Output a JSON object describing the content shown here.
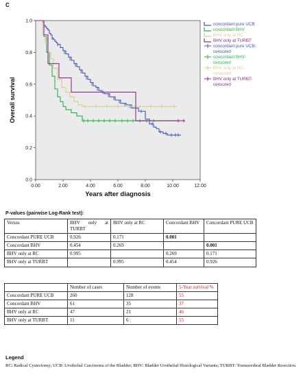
{
  "figure_label": "C",
  "chart_data": {
    "type": "line",
    "subtype": "kaplan-meier",
    "xlabel": "Years after diagnosis",
    "ylabel": "Overall survival",
    "xlim": [
      0,
      12
    ],
    "ylim": [
      0,
      1.0
    ],
    "x_ticks": [
      "0.00",
      "2.00",
      "4.00",
      "6.00",
      "8.00",
      "10.00",
      "12.00"
    ],
    "y_ticks": [
      "0.0",
      "0.2",
      "0.4",
      "0.6",
      "0.8",
      "1.0"
    ],
    "grid": false,
    "legend_position": "right",
    "background": "#ebebeb",
    "series": [
      {
        "name": "concordant pure UCB",
        "color": "#3c58b6",
        "x": [
          0,
          0.5,
          0.6,
          0.7,
          0.8,
          0.9,
          1.0,
          1.1,
          1.2,
          1.3,
          1.4,
          1.5,
          1.6,
          1.8,
          2.0,
          2.2,
          2.4,
          2.6,
          2.8,
          3.0,
          3.2,
          3.4,
          3.6,
          3.8,
          4.0,
          4.2,
          4.4,
          4.6,
          4.8,
          5.0,
          5.4,
          5.8,
          6.2,
          6.6,
          7.0,
          7.5,
          8.0,
          8.3,
          8.6,
          8.8,
          9.0,
          9.3,
          9.6,
          10.0,
          10.6
        ],
        "y": [
          1.0,
          0.99,
          0.97,
          0.96,
          0.95,
          0.94,
          0.92,
          0.91,
          0.89,
          0.88,
          0.87,
          0.86,
          0.85,
          0.83,
          0.81,
          0.79,
          0.77,
          0.75,
          0.73,
          0.71,
          0.69,
          0.67,
          0.65,
          0.63,
          0.61,
          0.59,
          0.58,
          0.56,
          0.55,
          0.54,
          0.52,
          0.5,
          0.48,
          0.47,
          0.45,
          0.43,
          0.38,
          0.35,
          0.33,
          0.32,
          0.3,
          0.29,
          0.28,
          0.28,
          0.28
        ],
        "censored_label": "concordant pure UCB-censored",
        "censored_x": [
          1.2,
          1.6,
          2.1,
          2.5,
          2.9,
          3.3,
          3.7,
          4.1,
          4.5,
          4.9,
          5.3,
          5.7,
          6.1,
          6.5,
          6.9,
          7.7,
          8.5,
          9.1,
          9.5,
          9.9,
          10.2,
          10.4
        ],
        "censored_y": [
          0.89,
          0.85,
          0.8,
          0.76,
          0.72,
          0.68,
          0.64,
          0.6,
          0.57,
          0.55,
          0.53,
          0.51,
          0.49,
          0.47,
          0.46,
          0.43,
          0.35,
          0.3,
          0.29,
          0.28,
          0.28,
          0.28
        ]
      },
      {
        "name": "concordant BHV",
        "color": "#22b24b",
        "x": [
          0,
          0.6,
          0.8,
          1.0,
          1.2,
          1.4,
          1.6,
          1.8,
          2.0,
          2.2,
          2.6,
          3.0,
          3.4,
          10.4
        ],
        "y": [
          1.0,
          0.9,
          0.8,
          0.72,
          0.65,
          0.57,
          0.52,
          0.49,
          0.46,
          0.44,
          0.42,
          0.4,
          0.37,
          0.37
        ],
        "censored_label": "concordant BHV-censored",
        "censored_x": [
          3.5,
          3.8,
          4.2,
          4.6,
          5.0,
          5.4,
          5.8,
          6.3,
          6.7,
          7.1,
          7.6,
          8.1,
          8.6
        ],
        "censored_y": [
          0.37,
          0.37,
          0.37,
          0.37,
          0.37,
          0.37,
          0.37,
          0.37,
          0.37,
          0.37,
          0.37,
          0.37,
          0.37
        ]
      },
      {
        "name": "BHV only at RC",
        "color": "#e0c890",
        "x": [
          0,
          0.5,
          0.7,
          0.9,
          1.1,
          1.3,
          1.6,
          1.9,
          2.2,
          2.5,
          2.8,
          3.1,
          3.4,
          10.3
        ],
        "y": [
          1.0,
          0.91,
          0.86,
          0.8,
          0.76,
          0.7,
          0.63,
          0.58,
          0.55,
          0.52,
          0.49,
          0.47,
          0.46,
          0.46
        ],
        "censored_label": "BHV only at RC-censored",
        "censored_x": [
          3.6,
          4.4,
          5.2,
          6.0,
          6.8,
          7.6,
          8.4,
          9.2,
          10.1
        ],
        "censored_y": [
          0.46,
          0.46,
          0.46,
          0.46,
          0.46,
          0.46,
          0.46,
          0.46,
          0.46
        ]
      },
      {
        "name": "BHV only at TURBT",
        "color": "#8b2a8b",
        "x": [
          0,
          0.6,
          0.9,
          1.7,
          2.6,
          7.3,
          10.9
        ],
        "y": [
          1.0,
          0.91,
          0.73,
          0.64,
          0.55,
          0.37,
          0.37
        ],
        "censored_label": "BHV only at TURBT-censored",
        "censored_x": [
          10.4,
          10.8
        ],
        "censored_y": [
          0.37,
          0.37
        ]
      }
    ]
  },
  "pvalues": {
    "title": "P-values (pairwise Log-Rank test):",
    "header": [
      "Versus",
      "BHV only at TURBT",
      "BHV only at RC",
      "Concordant BHV",
      "Concordant PURE UCB"
    ],
    "rows": [
      [
        "Concordant PURE UCB",
        "0.926",
        "0.171",
        "0.001",
        ""
      ],
      [
        "Concordant BHV",
        "0.454",
        "0.269",
        "",
        "0.001"
      ],
      [
        "BHV only at RC",
        "0.995",
        "",
        "0.269",
        "0.171"
      ],
      [
        "BHV only at TURBT",
        "",
        "0.995",
        "0.454",
        "0.926"
      ]
    ]
  },
  "counts": {
    "header": [
      "",
      "Number of cases",
      "Number of events",
      "5-Year survival %"
    ],
    "rows": [
      [
        "Concordant PURE UCB",
        "260",
        "128",
        "55"
      ],
      [
        "Concordant BHV",
        "61",
        "35",
        "37"
      ],
      [
        "BHV only at RC",
        "47",
        "21",
        "46"
      ],
      [
        "BHV only at TURBT",
        "11",
        "6",
        "55"
      ]
    ]
  },
  "legend_title": "Legend",
  "footnote": "RC: Radical Cystectomy; UCB: Urothelial Carcinoma of the Bladder; BHV: Bladder Urothelial Histological Variants; TURBT: Transurethral Bladder Resection."
}
